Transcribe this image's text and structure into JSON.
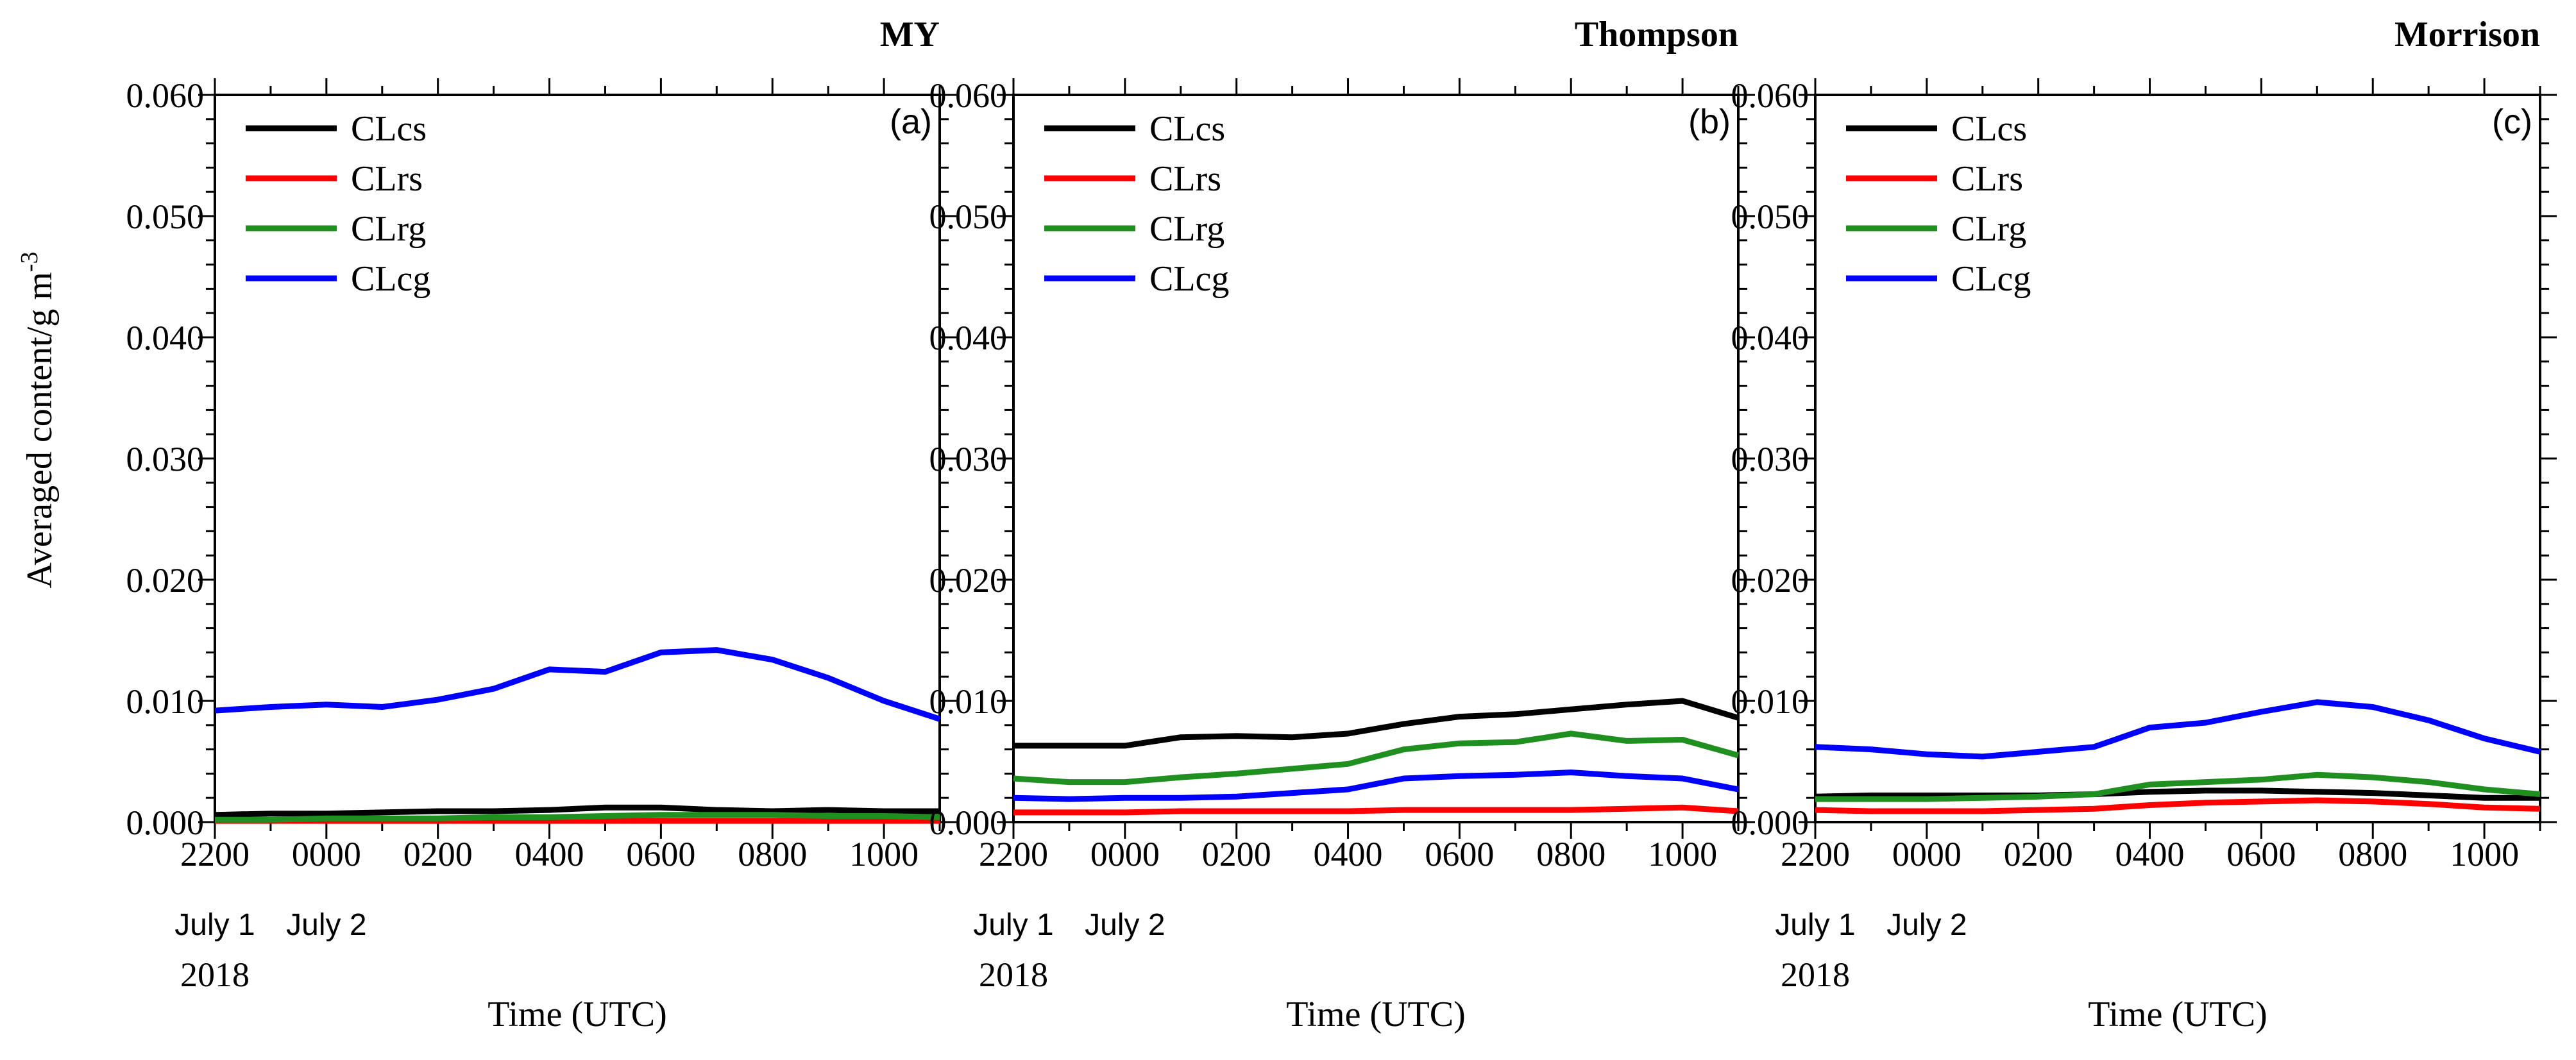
{
  "figure": {
    "ylabel": "Averaged content/g m",
    "ylabel_exp": "-3",
    "xlabel": "Time (UTC)",
    "date_line1": [
      "July 1",
      "July 2"
    ],
    "date_line2": "2018",
    "legend": [
      {
        "name": "CLcs",
        "color": "#000000"
      },
      {
        "name": "CLrs",
        "color": "#ff0000"
      },
      {
        "name": "CLrg",
        "color": "#1f8f1f"
      },
      {
        "name": "CLcg",
        "color": "#0000ff"
      }
    ]
  },
  "chart_data": [
    {
      "type": "line",
      "title": "MY",
      "panel_label": "(a)",
      "x": [
        2200,
        2300,
        0,
        100,
        200,
        300,
        400,
        500,
        600,
        700,
        800,
        900,
        1000,
        1100
      ],
      "xtick_labels": [
        "2200",
        "0000",
        "0200",
        "0400",
        "0600",
        "0800",
        "1000"
      ],
      "ylim": [
        0,
        0.06
      ],
      "ytick_labels": [
        "0.000",
        "0.010",
        "0.020",
        "0.030",
        "0.040",
        "0.050",
        "0.060"
      ],
      "series": [
        {
          "name": "CLcs",
          "values": [
            0.0006,
            0.0007,
            0.0007,
            0.0008,
            0.0009,
            0.0009,
            0.001,
            0.0012,
            0.0012,
            0.001,
            0.0009,
            0.001,
            0.0009,
            0.0009
          ]
        },
        {
          "name": "CLrs",
          "values": [
            0.0001,
            0.0001,
            0.0001,
            0.0001,
            0.0001,
            0.0001,
            0.0001,
            0.0001,
            0.0001,
            0.0001,
            0.0001,
            0.0001,
            0.0001,
            0.0001
          ]
        },
        {
          "name": "CLrg",
          "values": [
            0.0002,
            0.0002,
            0.0003,
            0.0003,
            0.0003,
            0.0004,
            0.0004,
            0.0005,
            0.0006,
            0.0006,
            0.0006,
            0.0005,
            0.0005,
            0.0004
          ]
        },
        {
          "name": "CLcg",
          "values": [
            0.0092,
            0.0095,
            0.0097,
            0.0095,
            0.0101,
            0.011,
            0.0126,
            0.0124,
            0.014,
            0.0142,
            0.0134,
            0.0119,
            0.01,
            0.0085
          ]
        }
      ]
    },
    {
      "type": "line",
      "title": "Thompson",
      "panel_label": "(b)",
      "x": [
        2200,
        2300,
        0,
        100,
        200,
        300,
        400,
        500,
        600,
        700,
        800,
        900,
        1000,
        1100
      ],
      "xtick_labels": [
        "2200",
        "0000",
        "0200",
        "0400",
        "0600",
        "0800",
        "1000"
      ],
      "ylim": [
        0,
        0.06
      ],
      "ytick_labels": [
        "0.000",
        "0.010",
        "0.020",
        "0.030",
        "0.040",
        "0.050",
        "0.060"
      ],
      "series": [
        {
          "name": "CLcs",
          "values": [
            0.0063,
            0.0063,
            0.0063,
            0.007,
            0.0071,
            0.007,
            0.0073,
            0.0081,
            0.0087,
            0.0089,
            0.0093,
            0.0097,
            0.01,
            0.0086
          ]
        },
        {
          "name": "CLrs",
          "values": [
            0.0008,
            0.0008,
            0.0008,
            0.0009,
            0.0009,
            0.0009,
            0.0009,
            0.001,
            0.001,
            0.001,
            0.001,
            0.0011,
            0.0012,
            0.0009
          ]
        },
        {
          "name": "CLrg",
          "values": [
            0.0036,
            0.0033,
            0.0033,
            0.0037,
            0.004,
            0.0044,
            0.0048,
            0.006,
            0.0065,
            0.0066,
            0.0073,
            0.0067,
            0.0068,
            0.0055
          ]
        },
        {
          "name": "CLcg",
          "values": [
            0.002,
            0.0019,
            0.002,
            0.002,
            0.0021,
            0.0024,
            0.0027,
            0.0036,
            0.0038,
            0.0039,
            0.0041,
            0.0038,
            0.0036,
            0.0027
          ]
        }
      ]
    },
    {
      "type": "line",
      "title": "Morrison",
      "panel_label": "(c)",
      "x": [
        2200,
        2300,
        0,
        100,
        200,
        300,
        400,
        500,
        600,
        700,
        800,
        900,
        1000,
        1100
      ],
      "xtick_labels": [
        "2200",
        "0000",
        "0200",
        "0400",
        "0600",
        "0800",
        "1000"
      ],
      "ylim": [
        0,
        0.06
      ],
      "ytick_labels": [
        "0.000",
        "0.010",
        "0.020",
        "0.030",
        "0.040",
        "0.050",
        "0.060"
      ],
      "series": [
        {
          "name": "CLcs",
          "values": [
            0.0021,
            0.0022,
            0.0022,
            0.0022,
            0.0022,
            0.0023,
            0.0025,
            0.0026,
            0.0026,
            0.0025,
            0.0024,
            0.0022,
            0.002,
            0.002
          ]
        },
        {
          "name": "CLrs",
          "values": [
            0.001,
            0.0009,
            0.0009,
            0.0009,
            0.001,
            0.0011,
            0.0014,
            0.0016,
            0.0017,
            0.0018,
            0.0017,
            0.0015,
            0.0012,
            0.0011
          ]
        },
        {
          "name": "CLrg",
          "values": [
            0.0019,
            0.0019,
            0.0019,
            0.002,
            0.0021,
            0.0023,
            0.0031,
            0.0033,
            0.0035,
            0.0039,
            0.0037,
            0.0033,
            0.0027,
            0.0023
          ]
        },
        {
          "name": "CLcg",
          "values": [
            0.0062,
            0.006,
            0.0056,
            0.0054,
            0.0058,
            0.0062,
            0.0078,
            0.0082,
            0.0091,
            0.0099,
            0.0095,
            0.0084,
            0.0069,
            0.0058
          ]
        }
      ]
    }
  ]
}
